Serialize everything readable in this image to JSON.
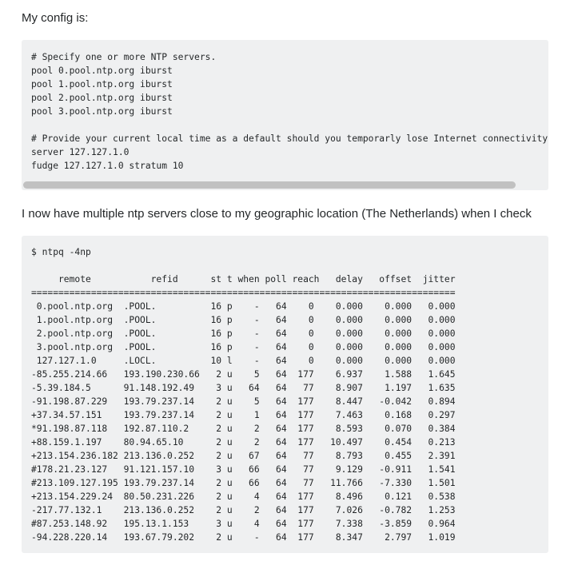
{
  "intro": "My config is:",
  "config_lines": [
    "# Specify one or more NTP servers.",
    "pool 0.pool.ntp.org iburst",
    "pool 1.pool.ntp.org iburst",
    "pool 2.pool.ntp.org iburst",
    "pool 3.pool.ntp.org iburst",
    "",
    "# Provide your current local time as a default should you temporarly lose Internet connectivity",
    "server 127.127.1.0",
    "fudge 127.127.1.0 stratum 10"
  ],
  "mid_text": "I now have multiple ntp servers close to my geographic location (The Netherlands) when I check",
  "ntpq": {
    "command": "$ ntpq -4np",
    "header": "     remote           refid      st t when poll reach   delay   offset  jitter",
    "separator": "==============================================================================",
    "rows": [
      " 0.pool.ntp.org  .POOL.          16 p    -   64    0    0.000    0.000   0.000",
      " 1.pool.ntp.org  .POOL.          16 p    -   64    0    0.000    0.000   0.000",
      " 2.pool.ntp.org  .POOL.          16 p    -   64    0    0.000    0.000   0.000",
      " 3.pool.ntp.org  .POOL.          16 p    -   64    0    0.000    0.000   0.000",
      " 127.127.1.0     .LOCL.          10 l    -   64    0    0.000    0.000   0.000",
      "-85.255.214.66   193.190.230.66   2 u    5   64  177    6.937    1.588   1.645",
      "-5.39.184.5      91.148.192.49    3 u   64   64   77    8.907    1.197   1.635",
      "-91.198.87.229   193.79.237.14    2 u    5   64  177    8.447   -0.042   0.894",
      "+37.34.57.151    193.79.237.14    2 u    1   64  177    7.463    0.168   0.297",
      "*91.198.87.118   192.87.110.2     2 u    2   64  177    8.593    0.070   0.384",
      "+88.159.1.197    80.94.65.10      2 u    2   64  177   10.497    0.454   0.213",
      "+213.154.236.182 213.136.0.252    2 u   67   64   77    8.793    0.455   2.391",
      "#178.21.23.127   91.121.157.10    3 u   66   64   77    9.129   -0.911   1.541",
      "#213.109.127.195 193.79.237.14    2 u   66   64   77   11.766   -7.330   1.501",
      "+213.154.229.24  80.50.231.226    2 u    4   64  177    8.496    0.121   0.538",
      "-217.77.132.1    213.136.0.252    2 u    2   64  177    7.026   -0.782   1.253",
      "#87.253.148.92   195.13.1.153     3 u    4   64  177    7.338   -3.859   0.964",
      "-94.228.220.14   193.67.79.202    2 u    -   64  177    8.347    2.797   1.019"
    ]
  }
}
